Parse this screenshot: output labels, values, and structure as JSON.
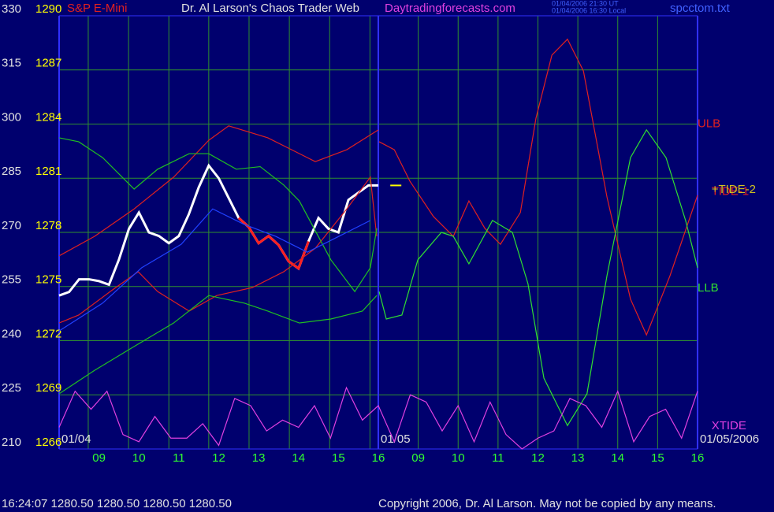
{
  "chart_data": {
    "type": "line",
    "title": "Dr. Al Larson's Chaos Trader Web",
    "subtitle": "S&P E-Mini",
    "website": "Daytradingforecasts.com",
    "timestamps": [
      "01/04/2006 21:30 UT",
      "01/04/2006 16:30 Local"
    ],
    "file": "spcctom.txt",
    "status": "16:24:07  1280.50 1280.50 1280.50 1280.50",
    "copyright": "Copyright 2006, Dr. Al Larson. May not be copied by any means.",
    "xlim": [
      0,
      16
    ],
    "xticks": [
      {
        "value": 1,
        "label": "09"
      },
      {
        "value": 2,
        "label": "10"
      },
      {
        "value": 3,
        "label": "11"
      },
      {
        "value": 4,
        "label": "12"
      },
      {
        "value": 5,
        "label": "13"
      },
      {
        "value": 6,
        "label": "14"
      },
      {
        "value": 7,
        "label": "15"
      },
      {
        "value": 8,
        "label": "16"
      },
      {
        "value": 9,
        "label": "09"
      },
      {
        "value": 10,
        "label": "10"
      },
      {
        "value": 11,
        "label": "11"
      },
      {
        "value": 12,
        "label": "12"
      },
      {
        "value": 13,
        "label": "13"
      },
      {
        "value": 14,
        "label": "14"
      },
      {
        "value": 15,
        "label": "15"
      },
      {
        "value": 16,
        "label": "16"
      }
    ],
    "xgrid": [
      0.73,
      1.74,
      2.75,
      3.75,
      4.76,
      5.77,
      6.78,
      7.79,
      9,
      10,
      11,
      12,
      13,
      14,
      15,
      16
    ],
    "date_labels": [
      {
        "value": 0,
        "label": "01/04"
      },
      {
        "value": 8,
        "label": "01/05"
      },
      {
        "value": 16,
        "label": "01/05/2006"
      }
    ],
    "ylim": [
      210,
      330
    ],
    "yticks": [
      210,
      225,
      240,
      255,
      270,
      285,
      300,
      315,
      330
    ],
    "y2lim": [
      1266,
      1290
    ],
    "y2ticks": [
      1266,
      1269,
      1272,
      1275,
      1278,
      1281,
      1284,
      1287,
      1290
    ],
    "grid": true,
    "series": [
      {
        "color": "#ffffff",
        "axis": "y2",
        "x": [
          0,
          0.25,
          0.5,
          0.75,
          1,
          1.25,
          1.5,
          1.75,
          2,
          2.25,
          2.5,
          2.75,
          3,
          3.25,
          3.5,
          3.75,
          4,
          4.25,
          4.5,
          4.75,
          5,
          5.25,
          5.5,
          5.75,
          6,
          6.25,
          6.5,
          6.75,
          7,
          7.25,
          7.5,
          7.75,
          8
        ],
        "values": [
          1274.5,
          1274.7,
          1275.4,
          1275.4,
          1275.3,
          1275.1,
          1276.5,
          1278.2,
          1279.1,
          1278.0,
          1277.8,
          1277.4,
          1277.8,
          1279.0,
          1280.5,
          1281.7,
          1281.0,
          1279.9,
          1278.8,
          1278.3,
          1277.4,
          1277.8,
          1277.3,
          1276.4,
          1276.0,
          1277.5,
          1278.8,
          1278.2,
          1278.0,
          1279.8,
          1280.2,
          1280.6,
          1280.6
        ],
        "highlight": {
          "from": 4.5,
          "to": 6.25,
          "color": "#ff2020"
        }
      },
      {
        "color": "#dd2020",
        "x": [
          0,
          0.89,
          1.88,
          2.87,
          3.75,
          4.25,
          5.23,
          6.42,
          7.21,
          8
        ],
        "values": [
          263.5,
          268.9,
          276.5,
          285.3,
          295.5,
          299.5,
          296.2,
          289.6,
          292.9,
          298.4
        ]
      },
      {
        "color": "#dd2020",
        "x": [
          0,
          0.49,
          1.28,
          1.98,
          2.47,
          3.26,
          3.95,
          4.84,
          5.63,
          6.42,
          7.21,
          7.8,
          7.96
        ],
        "values": [
          244.9,
          247.1,
          253.6,
          259.1,
          253.6,
          248.2,
          252.5,
          254.7,
          259.1,
          265.6,
          276.5,
          285.3,
          268.9
        ]
      },
      {
        "color": "#20c020",
        "x": [
          0,
          0.49,
          1.09,
          1.88,
          2.47,
          3.26,
          3.75,
          4.44,
          5.04,
          5.63,
          6.02,
          6.81,
          7.41,
          7.8,
          7.96
        ],
        "values": [
          296.2,
          295.1,
          290.7,
          282.0,
          287.5,
          291.8,
          291.8,
          287.5,
          288.2,
          283.1,
          278.7,
          262.4,
          253.6,
          260.2,
          271.1
        ]
      },
      {
        "color": "#20c020",
        "x": [
          0,
          0.89,
          1.88,
          2.87,
          3.75,
          4.64,
          5.23,
          6.02,
          6.81,
          7.6,
          7.96
        ],
        "values": [
          225.3,
          231.8,
          238.4,
          244.9,
          252.5,
          250.4,
          248.2,
          244.9,
          246.0,
          248.2,
          252.5
        ]
      },
      {
        "color": "#2040ff",
        "x": [
          0,
          1.09,
          2.07,
          3.06,
          3.85,
          4.64,
          5.43,
          6.22,
          7.01,
          7.8
        ],
        "values": [
          242.7,
          250.4,
          260.2,
          266.7,
          276.5,
          272.2,
          268.9,
          264.5,
          268.9,
          273.3
        ]
      },
      {
        "color": "#e02020",
        "x": [
          8.02,
          8.4,
          8.79,
          9.38,
          9.88,
          10.27,
          10.67,
          11.06,
          11.56,
          11.95,
          12.35,
          12.74,
          13.14,
          13.73,
          14.32,
          14.72,
          15.31,
          16
        ],
        "values": [
          295.1,
          292.9,
          284.2,
          274.4,
          268.9,
          278.7,
          271.1,
          266.7,
          275.5,
          301.6,
          319.1,
          323.5,
          314.7,
          279.8,
          251.5,
          241.6,
          258.0,
          280.3
        ]
      },
      {
        "color": "#30e030",
        "x": [
          8.02,
          8.2,
          8.59,
          8.99,
          9.58,
          9.88,
          10.27,
          10.86,
          11.36,
          11.75,
          12.15,
          12.74,
          13.23,
          13.73,
          14.32,
          14.72,
          15.21,
          15.7,
          16
        ],
        "values": [
          253.6,
          246.0,
          247.1,
          262.4,
          270.0,
          268.9,
          261.3,
          273.3,
          270.0,
          255.8,
          229.6,
          216.5,
          225.3,
          258.0,
          290.7,
          298.4,
          290.7,
          273.3,
          260.2
        ]
      },
      {
        "color": "#e040e0",
        "x": [
          0,
          0.4,
          0.8,
          1.2,
          1.6,
          2,
          2.4,
          2.8,
          3.2,
          3.6,
          4,
          4.4,
          4.8,
          5.2,
          5.6,
          6,
          6.4,
          6.8,
          7.2,
          7.6,
          8,
          8.4,
          8.8,
          9.2,
          9.6,
          10,
          10.4,
          10.8,
          11.2,
          11.6,
          12,
          12.4,
          12.8,
          13.2,
          13.6,
          14,
          14.4,
          14.8,
          15.2,
          15.6,
          16
        ],
        "values": [
          216,
          226,
          221,
          226,
          214,
          212,
          219,
          213,
          213,
          217,
          211,
          224,
          222,
          215,
          218,
          216,
          222,
          213,
          227,
          218,
          222,
          212,
          225,
          223,
          215,
          222,
          212,
          223,
          214,
          210,
          213,
          215,
          224,
          222,
          216,
          226,
          212,
          219,
          221,
          213,
          226
        ]
      }
    ],
    "marker": {
      "x": 8.3,
      "value": 1280.6,
      "color": "#ffff00"
    },
    "annotations": [
      {
        "text": "ULB",
        "x": 16,
        "value": 300,
        "color": "#e02020"
      },
      {
        "text": "TIDE-1",
        "x": 16.35,
        "value": 281.2,
        "color": "#e02020"
      },
      {
        "text": "+TIDE-2",
        "x": 16.35,
        "value": 281.8,
        "color": "#d0c020"
      },
      {
        "text": "LLB",
        "x": 16,
        "value": 254.5,
        "color": "#30e030"
      },
      {
        "text": "XTIDE",
        "x": 16.35,
        "value": 216.3,
        "color": "#e040e0"
      }
    ]
  }
}
